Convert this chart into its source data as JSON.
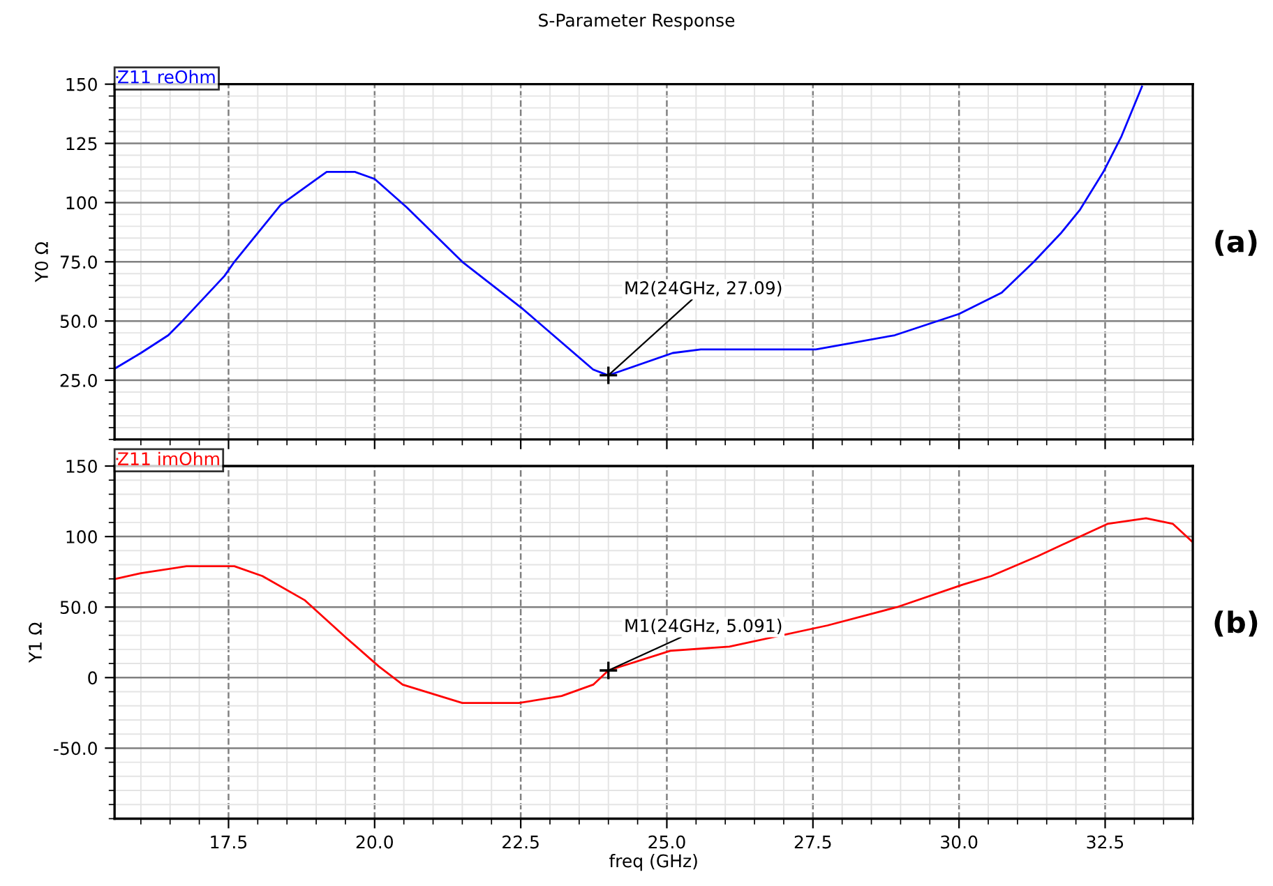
{
  "chart_data": [
    {
      "type": "line",
      "title": "S-Parameter Response",
      "ylabel": "Y0 Ω",
      "xlim": [
        15.55,
        34.0
      ],
      "ylim": [
        0,
        150
      ],
      "xticks": [
        17.5,
        20,
        22.5,
        25,
        27.5,
        30,
        32.5
      ],
      "yticks": [
        {
          "value": 25,
          "label": "25.0"
        },
        {
          "value": 50,
          "label": "50.0"
        },
        {
          "value": 75,
          "label": "75.0"
        },
        100,
        125,
        150
      ],
      "tick_labels": "y",
      "grid": true,
      "legend": "top left",
      "marker": "none",
      "line_style": "solid",
      "series": [
        {
          "name": "Z11 reOhm",
          "color": "#0000ff",
          "x": [
            15.56,
            16.0,
            16.47,
            16.71,
            17.43,
            17.6,
            18.39,
            19.18,
            19.66,
            20.0,
            20.55,
            21.5,
            22.54,
            23.74,
            23.9,
            24.0,
            25.1,
            25.58,
            27.55,
            28.9,
            30.0,
            30.73,
            31.28,
            31.74,
            32.07,
            32.47,
            32.78,
            33.13
          ],
          "values": [
            30,
            36.5,
            44,
            50,
            69,
            75,
            99,
            113,
            113,
            110,
            98,
            75,
            55,
            29.5,
            28,
            27.09,
            36.5,
            38,
            38,
            44,
            53,
            62,
            75,
            87,
            97,
            113,
            128,
            149
          ]
        }
      ],
      "annotations": [
        {
          "text": "M2(24GHz, 27.09)",
          "x": 24,
          "y": 27.09
        },
        "(a)"
      ]
    },
    {
      "type": "line",
      "xlabel": "freq (GHz)",
      "ylabel": "Y1 Ω",
      "xlim": [
        15.55,
        34.0
      ],
      "ylim": [
        -100,
        150
      ],
      "xticks": [
        {
          "value": 17.5,
          "label": "17.5"
        },
        {
          "value": 20,
          "label": "20.0"
        },
        {
          "value": 22.5,
          "label": "22.5"
        },
        {
          "value": 25,
          "label": "25.0"
        },
        {
          "value": 27.5,
          "label": "27.5"
        },
        {
          "value": 30,
          "label": "30.0"
        },
        {
          "value": 32.5,
          "label": "32.5"
        }
      ],
      "yticks": [
        {
          "value": -50,
          "label": "-50.0"
        },
        0,
        {
          "value": 50,
          "label": "50.0"
        },
        100,
        150
      ],
      "grid": true,
      "legend": "top left",
      "marker": "none",
      "line_style": "solid",
      "series": [
        {
          "name": "Z11 imOhm",
          "color": "#ff0000",
          "x": [
            15.56,
            16.0,
            16.78,
            17.6,
            18.08,
            18.8,
            19.52,
            20.07,
            20.48,
            21.5,
            22.47,
            23.2,
            23.74,
            24.0,
            25.06,
            26.07,
            27.75,
            28.94,
            30.07,
            30.55,
            31.34,
            32.54,
            33.2,
            33.66,
            34.0
          ],
          "values": [
            70,
            74,
            79,
            79,
            72,
            55,
            28,
            8,
            -5,
            -18,
            -18,
            -13,
            -5,
            5.091,
            19,
            22,
            37,
            50,
            66,
            72,
            86,
            109,
            113,
            109,
            96
          ]
        }
      ],
      "annotations": [
        {
          "text": "M1(24GHz, 5.091)",
          "x": 24,
          "y": 5.091
        },
        "(b)"
      ]
    }
  ]
}
